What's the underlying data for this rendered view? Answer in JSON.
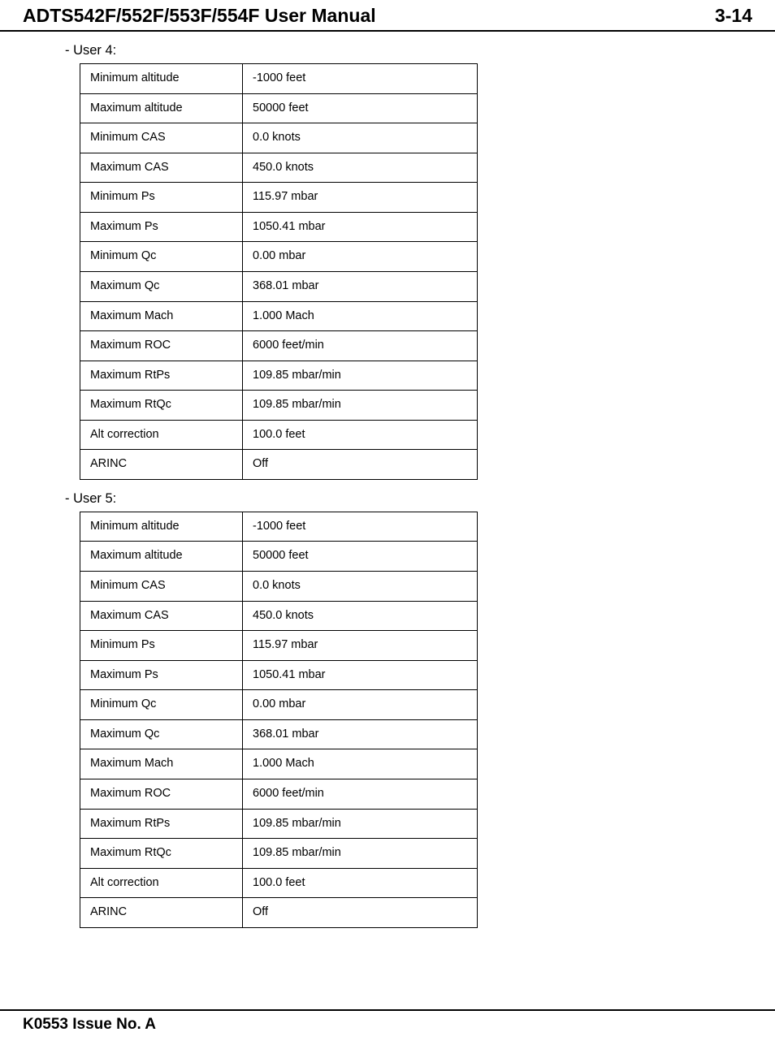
{
  "header": {
    "title": "ADTS542F/552F/553F/554F User Manual",
    "pageNumber": "3-14"
  },
  "footer": {
    "issue": "K0553 Issue No. A"
  },
  "sections": [
    {
      "label": "- User 4:",
      "rows": [
        {
          "param": "Minimum altitude",
          "value": "-1000 feet"
        },
        {
          "param": "Maximum altitude",
          "value": "50000 feet"
        },
        {
          "param": "Minimum CAS",
          "value": "0.0 knots"
        },
        {
          "param": "Maximum CAS",
          "value": "450.0 knots"
        },
        {
          "param": "Minimum Ps",
          "value": "115.97 mbar"
        },
        {
          "param": "Maximum Ps",
          "value": "1050.41 mbar"
        },
        {
          "param": "Minimum Qc",
          "value": "0.00 mbar"
        },
        {
          "param": "Maximum Qc",
          "value": "368.01 mbar"
        },
        {
          "param": "Maximum Mach",
          "value": "1.000 Mach"
        },
        {
          "param": "Maximum ROC",
          "value": "6000 feet/min"
        },
        {
          "param": "Maximum RtPs",
          "value": "109.85 mbar/min"
        },
        {
          "param": "Maximum RtQc",
          "value": "109.85 mbar/min"
        },
        {
          "param": "Alt correction",
          "value": "100.0 feet"
        },
        {
          "param": "ARINC",
          "value": "Off"
        }
      ]
    },
    {
      "label": "- User 5:",
      "rows": [
        {
          "param": "Minimum altitude",
          "value": "-1000 feet"
        },
        {
          "param": "Maximum altitude",
          "value": "50000 feet"
        },
        {
          "param": "Minimum CAS",
          "value": "0.0 knots"
        },
        {
          "param": "Maximum CAS",
          "value": "450.0 knots"
        },
        {
          "param": "Minimum Ps",
          "value": "115.97 mbar"
        },
        {
          "param": "Maximum Ps",
          "value": "1050.41 mbar"
        },
        {
          "param": "Minimum Qc",
          "value": "0.00 mbar"
        },
        {
          "param": "Maximum Qc",
          "value": "368.01 mbar"
        },
        {
          "param": "Maximum Mach",
          "value": "1.000 Mach"
        },
        {
          "param": "Maximum ROC",
          "value": "6000 feet/min"
        },
        {
          "param": "Maximum RtPs",
          "value": "109.85 mbar/min"
        },
        {
          "param": "Maximum RtQc",
          "value": "109.85 mbar/min"
        },
        {
          "param": "Alt correction",
          "value": "100.0 feet"
        },
        {
          "param": "ARINC",
          "value": "Off"
        }
      ]
    }
  ]
}
